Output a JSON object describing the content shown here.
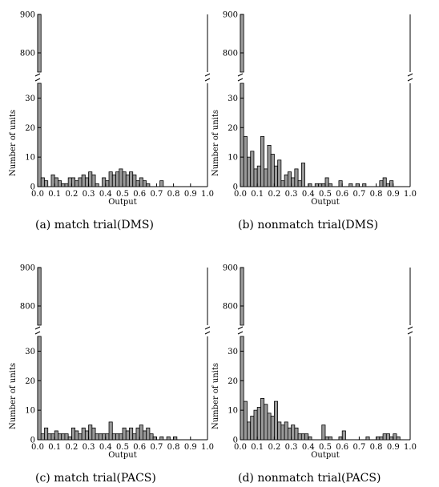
{
  "chart_data": [
    {
      "id": "a",
      "type": "bar",
      "caption": "(a) match trial(DMS)",
      "xlabel": "Output",
      "ylabel": "Number of units",
      "xlim": [
        0.0,
        1.0
      ],
      "bin_width": 0.02,
      "x_ticks": [
        "0.0",
        "0.1",
        "0.2",
        "0.3",
        "0.4",
        "0.5",
        "0.6",
        "0.7",
        "0.8",
        "0.9",
        "1.0"
      ],
      "y_ticks_lower": [
        "0",
        "10",
        "20",
        "30"
      ],
      "y_ticks_upper": [
        "800",
        "900"
      ],
      "ylim_lower": [
        0,
        35
      ],
      "ylim_upper": [
        750,
        900
      ],
      "axis_break": true,
      "values": [
        900,
        3,
        2,
        0,
        4,
        3,
        2,
        1,
        1,
        3,
        3,
        2,
        3,
        4,
        3,
        5,
        4,
        1,
        0,
        3,
        2,
        5,
        4,
        5,
        6,
        5,
        4,
        5,
        4,
        2,
        3,
        2,
        1,
        0,
        0,
        0,
        2,
        0,
        0,
        0,
        0,
        0,
        0,
        0,
        0,
        0,
        0,
        0,
        0,
        0
      ]
    },
    {
      "id": "b",
      "type": "bar",
      "caption": "(b) nonmatch trial(DMS)",
      "xlabel": "Output",
      "ylabel": "Number of units",
      "xlim": [
        0.0,
        1.0
      ],
      "bin_width": 0.02,
      "x_ticks": [
        "0.0",
        "0.1",
        "0.2",
        "0.3",
        "0.4",
        "0.5",
        "0.6",
        "0.7",
        "0.8",
        "0.9",
        "1.0"
      ],
      "y_ticks_lower": [
        "0",
        "10",
        "20",
        "30"
      ],
      "y_ticks_upper": [
        "800",
        "900"
      ],
      "ylim_lower": [
        0,
        35
      ],
      "ylim_upper": [
        750,
        900
      ],
      "axis_break": true,
      "values": [
        900,
        17,
        10,
        12,
        6,
        7,
        17,
        6,
        14,
        11,
        7,
        9,
        2,
        4,
        5,
        3,
        6,
        2,
        8,
        0,
        1,
        0,
        1,
        1,
        1,
        3,
        1,
        0,
        0,
        2,
        0,
        0,
        1,
        0,
        1,
        0,
        1,
        0,
        0,
        0,
        0,
        2,
        3,
        1,
        2,
        0,
        0,
        0,
        0,
        0
      ]
    },
    {
      "id": "c",
      "type": "bar",
      "caption": "(c) match trial(PACS)",
      "xlabel": "Output",
      "ylabel": "Number of units",
      "xlim": [
        0.0,
        1.0
      ],
      "bin_width": 0.02,
      "x_ticks": [
        "0.0",
        "0.1",
        "0.2",
        "0.3",
        "0.4",
        "0.5",
        "0.6",
        "0.7",
        "0.8",
        "0.9",
        "1.0"
      ],
      "y_ticks_lower": [
        "0",
        "10",
        "20",
        "30"
      ],
      "y_ticks_upper": [
        "800",
        "900"
      ],
      "ylim_lower": [
        0,
        35
      ],
      "ylim_upper": [
        750,
        900
      ],
      "axis_break": true,
      "values": [
        900,
        2,
        4,
        2,
        2,
        3,
        2,
        2,
        2,
        1,
        4,
        3,
        2,
        4,
        3,
        5,
        4,
        2,
        2,
        2,
        2,
        6,
        2,
        2,
        2,
        4,
        3,
        4,
        2,
        4,
        5,
        3,
        4,
        2,
        1,
        0,
        1,
        0,
        1,
        0,
        1,
        0,
        0,
        0,
        0,
        0,
        0,
        0,
        0,
        0
      ]
    },
    {
      "id": "d",
      "type": "bar",
      "caption": "(d) nonmatch trial(PACS)",
      "xlabel": "Output",
      "ylabel": "Number of units",
      "xlim": [
        0.0,
        1.0
      ],
      "bin_width": 0.02,
      "x_ticks": [
        "0.0",
        "0.1",
        "0.2",
        "0.3",
        "0.4",
        "0.5",
        "0.6",
        "0.7",
        "0.8",
        "0.9",
        "1.0"
      ],
      "y_ticks_lower": [
        "0",
        "10",
        "20",
        "30"
      ],
      "y_ticks_upper": [
        "800",
        "900"
      ],
      "ylim_lower": [
        0,
        35
      ],
      "ylim_upper": [
        750,
        900
      ],
      "axis_break": true,
      "values": [
        900,
        13,
        6,
        8,
        10,
        11,
        14,
        12,
        9,
        8,
        13,
        6,
        5,
        6,
        4,
        5,
        4,
        2,
        2,
        2,
        1,
        0,
        0,
        0,
        5,
        1,
        1,
        0,
        0,
        1,
        3,
        0,
        0,
        0,
        0,
        0,
        0,
        1,
        0,
        0,
        1,
        1,
        2,
        2,
        1,
        2,
        1,
        0,
        0,
        0
      ]
    }
  ]
}
